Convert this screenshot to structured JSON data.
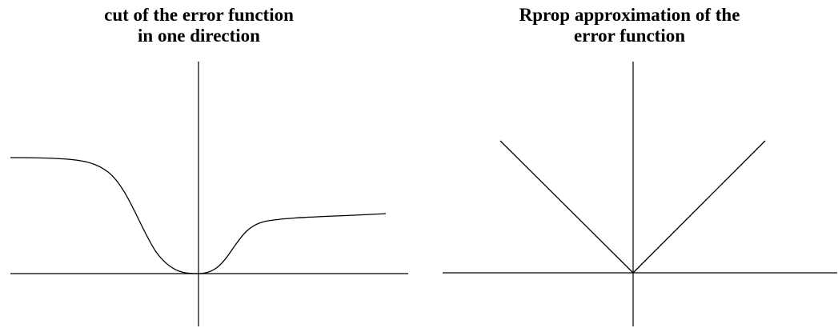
{
  "panels": [
    {
      "title_lines": [
        "cut of the error function",
        "in one direction"
      ]
    },
    {
      "title_lines": [
        "Rprop approximation of the",
        "error function"
      ]
    }
  ],
  "colors": {
    "ink": "#000000",
    "background": "#ffffff"
  }
}
